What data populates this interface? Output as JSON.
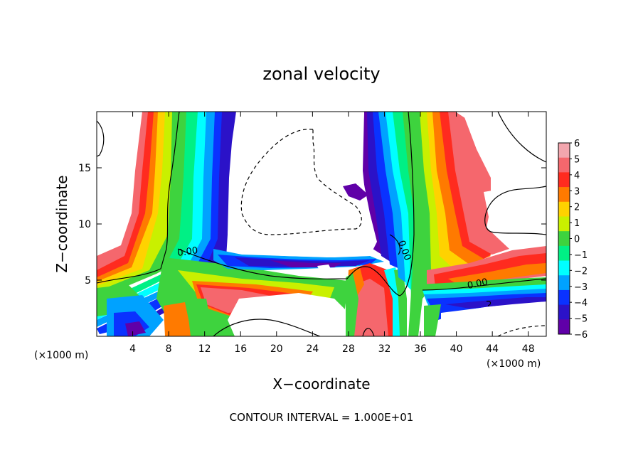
{
  "chart_data": {
    "type": "heatmap",
    "title": "zonal velocity",
    "xlabel": "X−coordinate",
    "ylabel": "Z−coordinate",
    "x_unit_left": "(×1000 m)",
    "x_unit_right": "(×1000 m)",
    "xlim": [
      0,
      50
    ],
    "ylim": [
      0,
      20
    ],
    "x_ticks": [
      4,
      8,
      12,
      16,
      20,
      24,
      28,
      32,
      36,
      40,
      44,
      48
    ],
    "y_ticks": [
      5,
      10,
      15
    ],
    "colorbar": {
      "min": -6,
      "max": 6,
      "labels": [
        "6",
        "5",
        "4",
        "3",
        "2",
        "1",
        "0",
        "−1",
        "−2",
        "−3",
        "−4",
        "−5",
        "−6"
      ],
      "colors": [
        "#f3a6ae",
        "#f5676d",
        "#ff2b1f",
        "#ff7a00",
        "#ffd200",
        "#c9f000",
        "#3ed33e",
        "#00f085",
        "#00ffff",
        "#00a2ff",
        "#0a32ff",
        "#2b12c8",
        "#6000a8"
      ]
    },
    "contour_labels": [
      "0.00",
      "0.00",
      "0.00"
    ],
    "footer": "CONTOUR INTERVAL = 1.000E+01"
  }
}
